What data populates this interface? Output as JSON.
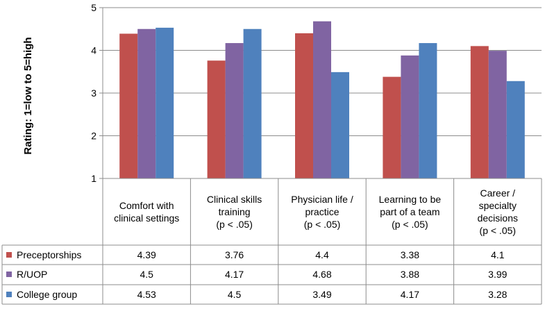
{
  "chart_data": {
    "type": "bar",
    "ylabel": "Rating:  1=low to 5=high",
    "ylim": [
      1,
      5
    ],
    "yticks": [
      "1",
      "2",
      "3",
      "4",
      "5"
    ],
    "categories": [
      [
        "Comfort with",
        "clinical settings"
      ],
      [
        "Clinical skills",
        "training",
        "(p < .05)"
      ],
      [
        "Physician life /",
        "practice",
        "(p < .05)"
      ],
      [
        "Learning to be",
        "part of a team",
        "(p < .05)"
      ],
      [
        "Career /",
        "specialty",
        "decisions",
        "(p < .05)"
      ]
    ],
    "series": [
      {
        "name": "Preceptorships",
        "color": "#C0504D",
        "values": [
          4.39,
          3.76,
          4.4,
          3.38,
          4.1
        ],
        "labels": [
          "4.39",
          "3.76",
          "4.4",
          "3.38",
          "4.1"
        ]
      },
      {
        "name": "R/UOP",
        "color": "#8064A2",
        "values": [
          4.5,
          4.17,
          4.68,
          3.88,
          3.99
        ],
        "labels": [
          "4.5",
          "4.17",
          "4.68",
          "3.88",
          "3.99"
        ]
      },
      {
        "name": "College group",
        "color": "#4F81BD",
        "values": [
          4.53,
          4.5,
          3.49,
          4.17,
          3.28
        ],
        "labels": [
          "4.53",
          "4.5",
          "3.49",
          "4.17",
          "3.28"
        ]
      }
    ]
  }
}
